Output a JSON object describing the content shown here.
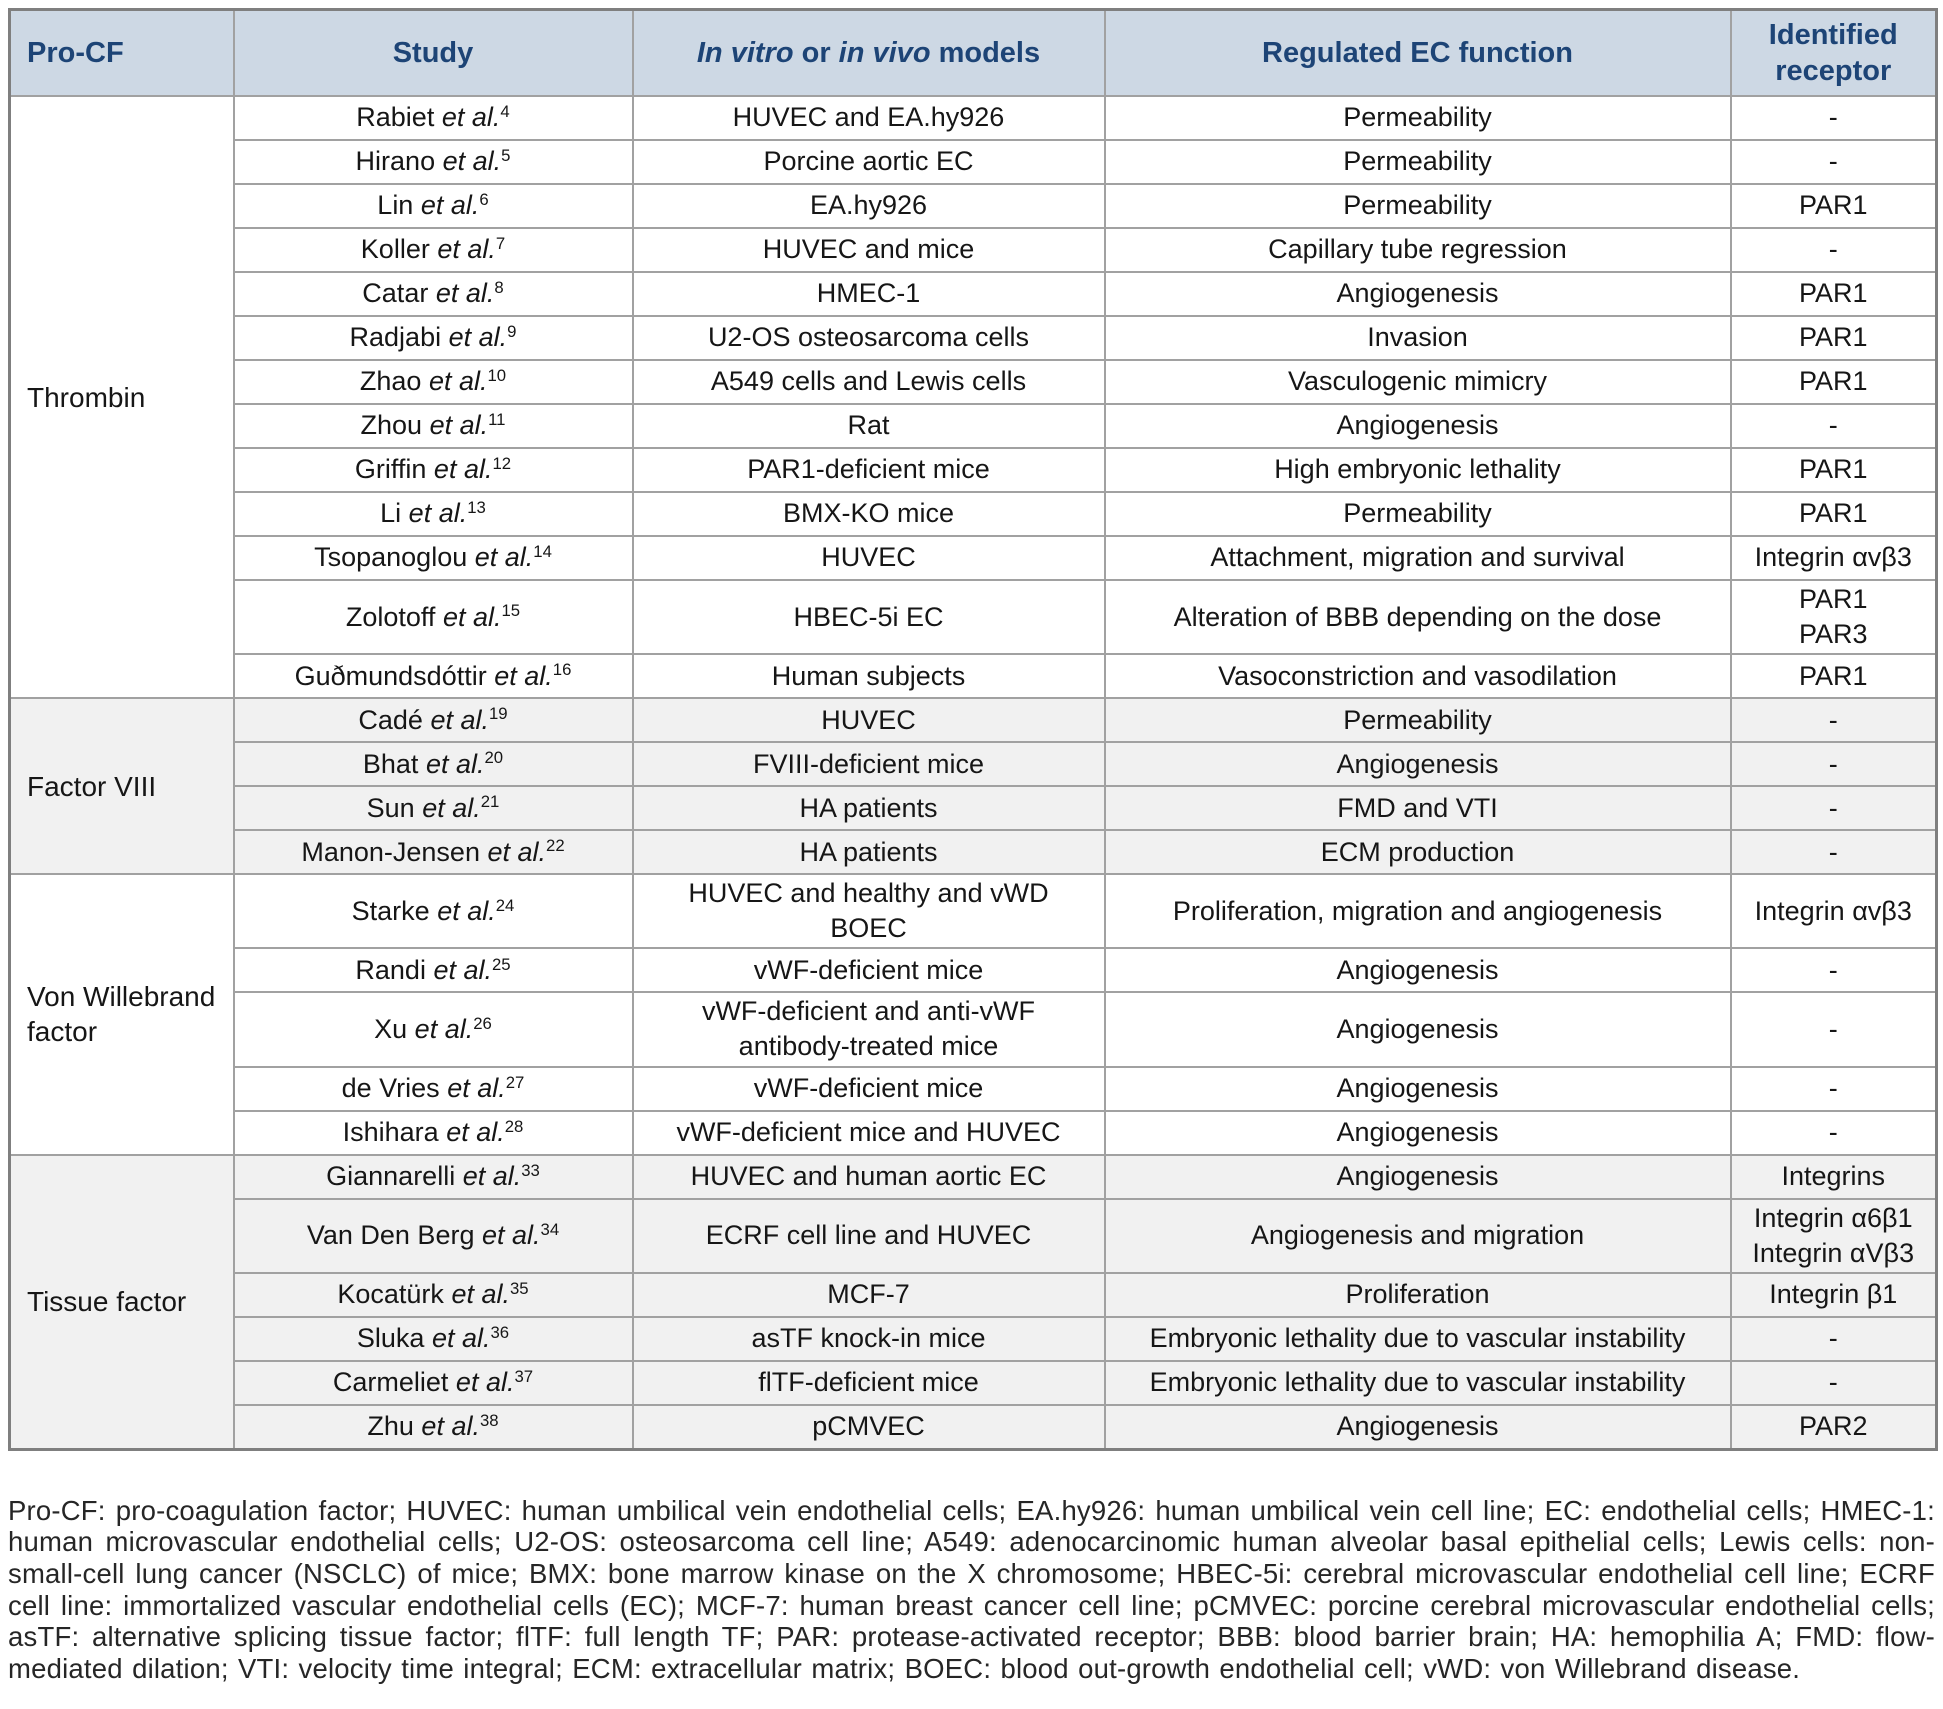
{
  "header": {
    "pro_cf": "Pro-CF",
    "study": "Study",
    "models_italic1": "In vitro",
    "models_mid": " or ",
    "models_italic2": "in vivo",
    "models_end": " models",
    "function": "Regulated EC function",
    "receptor": "Identified receptor"
  },
  "labels": {
    "etal": "et al."
  },
  "colors": {
    "header_bg": "#cdd8e4",
    "header_text": "#1d4476",
    "shaded_row_bg": "#f1f1f1",
    "border": "#a1a1a1",
    "outer_border": "#7f7f7f",
    "body_text": "#161616"
  },
  "groups": [
    {
      "name": "Thrombin",
      "shaded": false,
      "rows": [
        {
          "study": "Rabiet",
          "ref": "4",
          "model": "HUVEC and EA.hy926",
          "function": "Permeability",
          "receptor": "-"
        },
        {
          "study": "Hirano",
          "ref": "5",
          "model": "Porcine aortic EC",
          "function": "Permeability",
          "receptor": "-"
        },
        {
          "study": "Lin",
          "ref": "6",
          "model": "EA.hy926",
          "function": "Permeability",
          "receptor": "PAR1"
        },
        {
          "study": "Koller",
          "ref": "7",
          "model": "HUVEC and mice",
          "function": "Capillary tube regression",
          "receptor": "-"
        },
        {
          "study": "Catar",
          "ref": "8",
          "model": "HMEC-1",
          "function": "Angiogenesis",
          "receptor": "PAR1"
        },
        {
          "study": "Radjabi",
          "ref": "9",
          "model": "U2-OS osteosarcoma cells",
          "function": "Invasion",
          "receptor": "PAR1"
        },
        {
          "study": "Zhao",
          "ref": "10",
          "model": "A549 cells and Lewis cells",
          "function": "Vasculogenic mimicry",
          "receptor": "PAR1"
        },
        {
          "study": "Zhou",
          "ref": "11",
          "model": "Rat",
          "function": "Angiogenesis",
          "receptor": "-"
        },
        {
          "study": "Griffin",
          "ref": "12",
          "model": "PAR1-deficient mice",
          "function": "High embryonic lethality",
          "receptor": "PAR1"
        },
        {
          "study": "Li",
          "ref": "13",
          "model": "BMX-KO mice",
          "function": "Permeability",
          "receptor": "PAR1"
        },
        {
          "study": "Tsopanoglou",
          "ref": "14",
          "model": "HUVEC",
          "function": "Attachment, migration and survival",
          "receptor": "Integrin αvβ3"
        },
        {
          "study": "Zolotoff",
          "ref": "15",
          "model": "HBEC-5i EC",
          "function": "Alteration of BBB depending on the dose",
          "receptor": "PAR1\nPAR3"
        },
        {
          "study": "Guðmundsdóttir",
          "ref": "16",
          "model": "Human subjects",
          "function": "Vasoconstriction and vasodilation",
          "receptor": "PAR1"
        }
      ]
    },
    {
      "name": "Factor VIII",
      "shaded": true,
      "rows": [
        {
          "study": "Cadé",
          "ref": "19",
          "model": "HUVEC",
          "function": "Permeability",
          "receptor": "-"
        },
        {
          "study": "Bhat",
          "ref": "20",
          "model": "FVIII-deficient mice",
          "function": "Angiogenesis",
          "receptor": "-"
        },
        {
          "study": "Sun",
          "ref": "21",
          "model": "HA patients",
          "function": "FMD and VTI",
          "receptor": "-"
        },
        {
          "study": "Manon-Jensen",
          "ref": "22",
          "model": "HA patients",
          "function": "ECM production",
          "receptor": "-"
        }
      ]
    },
    {
      "name": "Von Willebrand factor",
      "shaded": false,
      "rows": [
        {
          "study": "Starke",
          "ref": "24",
          "model": "HUVEC and healthy and vWD\nBOEC",
          "function": "Proliferation, migration and angiogenesis",
          "receptor": "Integrin αvβ3"
        },
        {
          "study": "Randi",
          "ref": "25",
          "model": "vWF-deficient mice",
          "function": "Angiogenesis",
          "receptor": "-"
        },
        {
          "study": "Xu",
          "ref": "26",
          "model": "vWF-deficient and anti-vWF\nantibody-treated mice",
          "function": "Angiogenesis",
          "receptor": "-"
        },
        {
          "study": "de Vries",
          "ref": "27",
          "model": "vWF-deficient mice",
          "function": "Angiogenesis",
          "receptor": "-"
        },
        {
          "study": "Ishihara",
          "ref": "28",
          "model": "vWF-deficient mice and HUVEC",
          "function": "Angiogenesis",
          "receptor": "-"
        }
      ]
    },
    {
      "name": "Tissue factor",
      "shaded": true,
      "rows": [
        {
          "study": "Giannarelli",
          "ref": "33",
          "model": "HUVEC and human aortic EC",
          "function": "Angiogenesis",
          "receptor": "Integrins"
        },
        {
          "study": "Van Den Berg",
          "ref": "34",
          "model": "ECRF cell line and HUVEC",
          "function": "Angiogenesis and migration",
          "receptor": "Integrin α6β1\nIntegrin αVβ3"
        },
        {
          "study": "Kocatürk",
          "ref": "35",
          "model": "MCF-7",
          "function": "Proliferation",
          "receptor": "Integrin β1"
        },
        {
          "study": "Sluka",
          "ref": "36",
          "model": "asTF knock-in mice",
          "function": "Embryonic lethality due to vascular instability",
          "receptor": "-"
        },
        {
          "study": "Carmeliet",
          "ref": "37",
          "model": "flTF-deficient mice",
          "function": "Embryonic lethality due to vascular instability",
          "receptor": "-"
        },
        {
          "study": "Zhu",
          "ref": "38",
          "model": "pCMVEC",
          "function": "Angiogenesis",
          "receptor": "PAR2"
        }
      ]
    }
  ],
  "footnote": "Pro-CF: pro-coagulation factor; HUVEC: human umbilical vein endothelial cells; EA.hy926: human umbilical vein cell line; EC: endothelial cells; HMEC-1: human microvascular endothelial cells; U2-OS: osteosarcoma cell line; A549: adenocarcinomic human alveolar basal epithelial cells; Lewis cells: non-small-cell lung cancer (NSCLC) of mice; BMX: bone marrow kinase on the X chromosome; HBEC-5i: cerebral microvascular endothelial cell line; ECRF cell line: immortalized vascular endothelial cells (EC); MCF-7: human breast cancer cell line; pCMVEC: porcine cerebral microvascular endothelial cells; asTF: alternative splicing tissue factor; flTF: full length TF; PAR: protease-activated receptor; BBB: blood barrier brain; HA: hemophilia A; FMD: flow-mediated dilation; VTI: velocity time integral; ECM: extracellular matrix; BOEC: blood out-growth endothelial cell; vWD: von Willebrand disease."
}
